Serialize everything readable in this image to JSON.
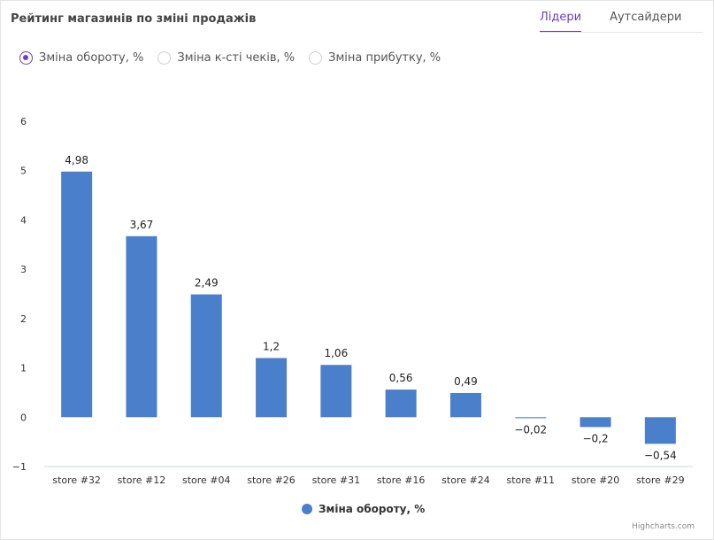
{
  "header": {
    "title": "Рейтинг магазинів по зміні продажів",
    "tabs": [
      {
        "label": "Лідери",
        "active": true
      },
      {
        "label": "Аутсайдери",
        "active": false
      }
    ]
  },
  "metrics": [
    {
      "label": "Зміна обороту, %",
      "checked": true
    },
    {
      "label": "Зміна к-сті чеків, %",
      "checked": false
    },
    {
      "label": "Зміна прибутку, %",
      "checked": false
    }
  ],
  "credit": "Highcharts.com",
  "colors": {
    "accent": "#6a3fc9",
    "bar": "#4a7fcb"
  },
  "chart_data": {
    "type": "bar",
    "title": "",
    "xlabel": "",
    "ylabel": "",
    "ylim": [
      -1,
      6
    ],
    "yticks": [
      "−1",
      "0",
      "1",
      "2",
      "3",
      "4",
      "5",
      "6"
    ],
    "categories": [
      "store #32",
      "store #12",
      "store #04",
      "store #26",
      "store #31",
      "store #16",
      "store #24",
      "store #11",
      "store #20",
      "store #29"
    ],
    "series": [
      {
        "name": "Зміна обороту, %",
        "values": [
          4.98,
          3.67,
          2.49,
          1.2,
          1.06,
          0.56,
          0.49,
          -0.02,
          -0.2,
          -0.54
        ],
        "labels": [
          "4,98",
          "3,67",
          "2,49",
          "1,2",
          "1,06",
          "0,56",
          "0,49",
          "−0,02",
          "−0,2",
          "−0,54"
        ]
      }
    ],
    "grid": false,
    "legend": "bottom-center"
  }
}
